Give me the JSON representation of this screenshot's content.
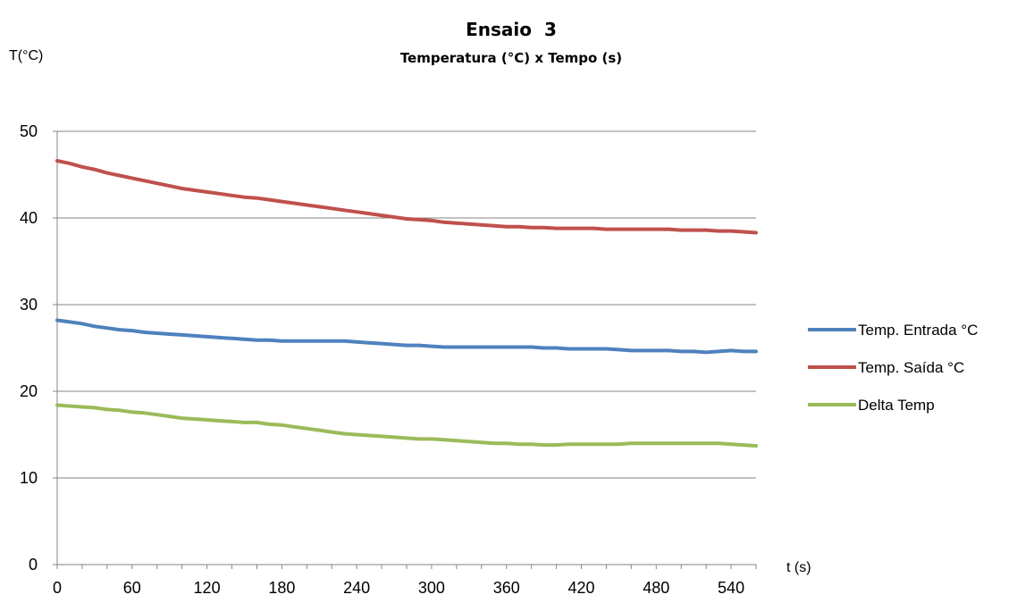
{
  "chart_data": {
    "type": "line",
    "title": "Ensaio  3",
    "subtitle": "Temperatura (°C) x Tempo (s)",
    "ylabel": "T(°C)",
    "xlabel": "t (s)",
    "xlim": [
      0,
      560
    ],
    "ylim": [
      0,
      50
    ],
    "xticks": [
      0,
      60,
      120,
      180,
      240,
      300,
      360,
      420,
      480,
      540
    ],
    "yticks": [
      0,
      10,
      20,
      30,
      40,
      50
    ],
    "grid": true,
    "legend_position": "right",
    "x": [
      0,
      10,
      20,
      30,
      40,
      50,
      60,
      70,
      80,
      90,
      100,
      110,
      120,
      130,
      140,
      150,
      160,
      170,
      180,
      190,
      200,
      210,
      220,
      230,
      240,
      250,
      260,
      270,
      280,
      290,
      300,
      310,
      320,
      330,
      340,
      350,
      360,
      370,
      380,
      390,
      400,
      410,
      420,
      430,
      440,
      450,
      460,
      470,
      480,
      490,
      500,
      510,
      520,
      530,
      540,
      550,
      560
    ],
    "series": [
      {
        "name": "Temp. Entrada °C",
        "color": "#4f81bd",
        "values": [
          28.2,
          28.0,
          27.8,
          27.5,
          27.3,
          27.1,
          27.0,
          26.8,
          26.7,
          26.6,
          26.5,
          26.4,
          26.3,
          26.2,
          26.1,
          26.0,
          25.9,
          25.9,
          25.8,
          25.8,
          25.8,
          25.8,
          25.8,
          25.8,
          25.7,
          25.6,
          25.5,
          25.4,
          25.3,
          25.3,
          25.2,
          25.1,
          25.1,
          25.1,
          25.1,
          25.1,
          25.1,
          25.1,
          25.1,
          25.0,
          25.0,
          24.9,
          24.9,
          24.9,
          24.9,
          24.8,
          24.7,
          24.7,
          24.7,
          24.7,
          24.6,
          24.6,
          24.5,
          24.6,
          24.7,
          24.6,
          24.6
        ]
      },
      {
        "name": "Temp. Saída °C",
        "color": "#c0504d",
        "values": [
          46.6,
          46.3,
          45.9,
          45.6,
          45.2,
          44.9,
          44.6,
          44.3,
          44.0,
          43.7,
          43.4,
          43.2,
          43.0,
          42.8,
          42.6,
          42.4,
          42.3,
          42.1,
          41.9,
          41.7,
          41.5,
          41.3,
          41.1,
          40.9,
          40.7,
          40.5,
          40.3,
          40.1,
          39.9,
          39.8,
          39.7,
          39.5,
          39.4,
          39.3,
          39.2,
          39.1,
          39.0,
          39.0,
          38.9,
          38.9,
          38.8,
          38.8,
          38.8,
          38.8,
          38.7,
          38.7,
          38.7,
          38.7,
          38.7,
          38.7,
          38.6,
          38.6,
          38.6,
          38.5,
          38.5,
          38.4,
          38.3
        ]
      },
      {
        "name": "Delta Temp",
        "color": "#9bbb59",
        "values": [
          18.4,
          18.3,
          18.2,
          18.1,
          17.9,
          17.8,
          17.6,
          17.5,
          17.3,
          17.1,
          16.9,
          16.8,
          16.7,
          16.6,
          16.5,
          16.4,
          16.4,
          16.2,
          16.1,
          15.9,
          15.7,
          15.5,
          15.3,
          15.1,
          15.0,
          14.9,
          14.8,
          14.7,
          14.6,
          14.5,
          14.5,
          14.4,
          14.3,
          14.2,
          14.1,
          14.0,
          14.0,
          13.9,
          13.9,
          13.8,
          13.8,
          13.9,
          13.9,
          13.9,
          13.9,
          13.9,
          14.0,
          14.0,
          14.0,
          14.0,
          14.0,
          14.0,
          14.0,
          14.0,
          13.9,
          13.8,
          13.7
        ]
      }
    ]
  }
}
